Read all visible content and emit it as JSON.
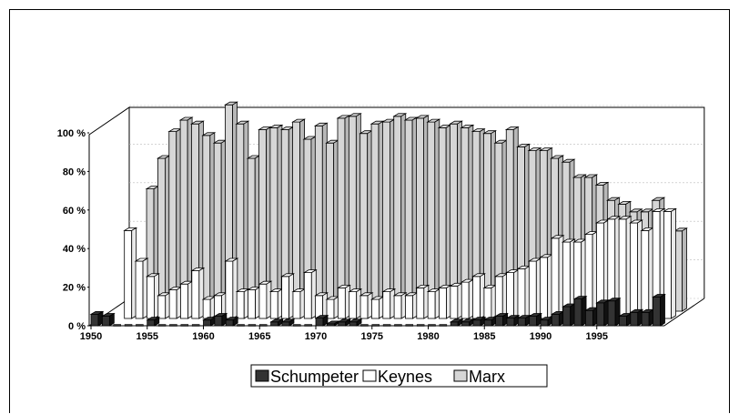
{
  "chart_data": {
    "type": "bar",
    "style": "3d-stacked-rows",
    "x": [
      1950,
      1951,
      1952,
      1953,
      1954,
      1955,
      1956,
      1957,
      1958,
      1959,
      1960,
      1961,
      1962,
      1963,
      1964,
      1965,
      1966,
      1967,
      1968,
      1969,
      1970,
      1971,
      1972,
      1973,
      1974,
      1975,
      1976,
      1977,
      1978,
      1979,
      1980,
      1981,
      1982,
      1983,
      1984,
      1985,
      1986,
      1987,
      1988,
      1989,
      1990,
      1991,
      1992,
      1993,
      1994,
      1995,
      1996,
      1997,
      1998,
      1999,
      2000
    ],
    "x_ticks": [
      "1950",
      "1955",
      "1960",
      "1965",
      "1970",
      "1975",
      "1980",
      "1985",
      "1990",
      "1995"
    ],
    "y_ticks": [
      "0 %",
      "20 %",
      "40 %",
      "60 %",
      "80 %",
      "100 %"
    ],
    "ylim": [
      0,
      100
    ],
    "series": [
      {
        "name": "Schumpeter",
        "color": "#333333",
        "values": [
          6,
          5,
          0,
          0,
          0,
          3,
          0,
          0,
          0,
          0,
          3,
          5,
          3,
          0,
          0,
          0,
          2,
          2,
          0,
          0,
          4,
          1,
          2,
          2,
          0,
          0,
          0,
          0,
          0,
          0,
          0,
          0,
          2,
          2,
          3,
          3,
          5,
          4,
          4,
          5,
          3,
          6,
          10,
          14,
          8,
          12,
          13,
          5,
          7,
          7,
          15
        ]
      },
      {
        "name": "Keynes",
        "color": "#ffffff",
        "values": [
          0,
          0,
          46,
          30,
          22,
          12,
          15,
          18,
          25,
          10,
          12,
          30,
          14,
          15,
          18,
          14,
          22,
          14,
          24,
          12,
          10,
          16,
          14,
          12,
          10,
          14,
          12,
          12,
          16,
          14,
          16,
          17,
          19,
          22,
          16,
          22,
          24,
          26,
          30,
          32,
          42,
          40,
          40,
          44,
          50,
          52,
          52,
          50,
          46,
          56,
          56
        ]
      },
      {
        "name": "Marx",
        "color": "#d6d6d6",
        "values": [
          0,
          0,
          0,
          0,
          0,
          0,
          0,
          0,
          0,
          0,
          0,
          0,
          0,
          0,
          0,
          0,
          0,
          0,
          0,
          0,
          0,
          0,
          0,
          0,
          0,
          0,
          0,
          0,
          0,
          0,
          0,
          0,
          0,
          0,
          0,
          0,
          0,
          0,
          0,
          0,
          0,
          0,
          0,
          0,
          0,
          0,
          0,
          0,
          0,
          0,
          0
        ],
        "heights": [
          0,
          0,
          0,
          64,
          80,
          94,
          100,
          98,
          92,
          88,
          108,
          98,
          80,
          95,
          96,
          95,
          99,
          90,
          97,
          88,
          101,
          102,
          93,
          98,
          99,
          102,
          100,
          101,
          99,
          96,
          98,
          96,
          94,
          93,
          88,
          95,
          86,
          84,
          84,
          80,
          78,
          70,
          70,
          66,
          58,
          56,
          52,
          52,
          58,
          52,
          42
        ]
      }
    ],
    "legend": {
      "placement": "bottom",
      "entries": [
        "Schumpeter",
        "Keynes",
        "Marx"
      ]
    }
  }
}
